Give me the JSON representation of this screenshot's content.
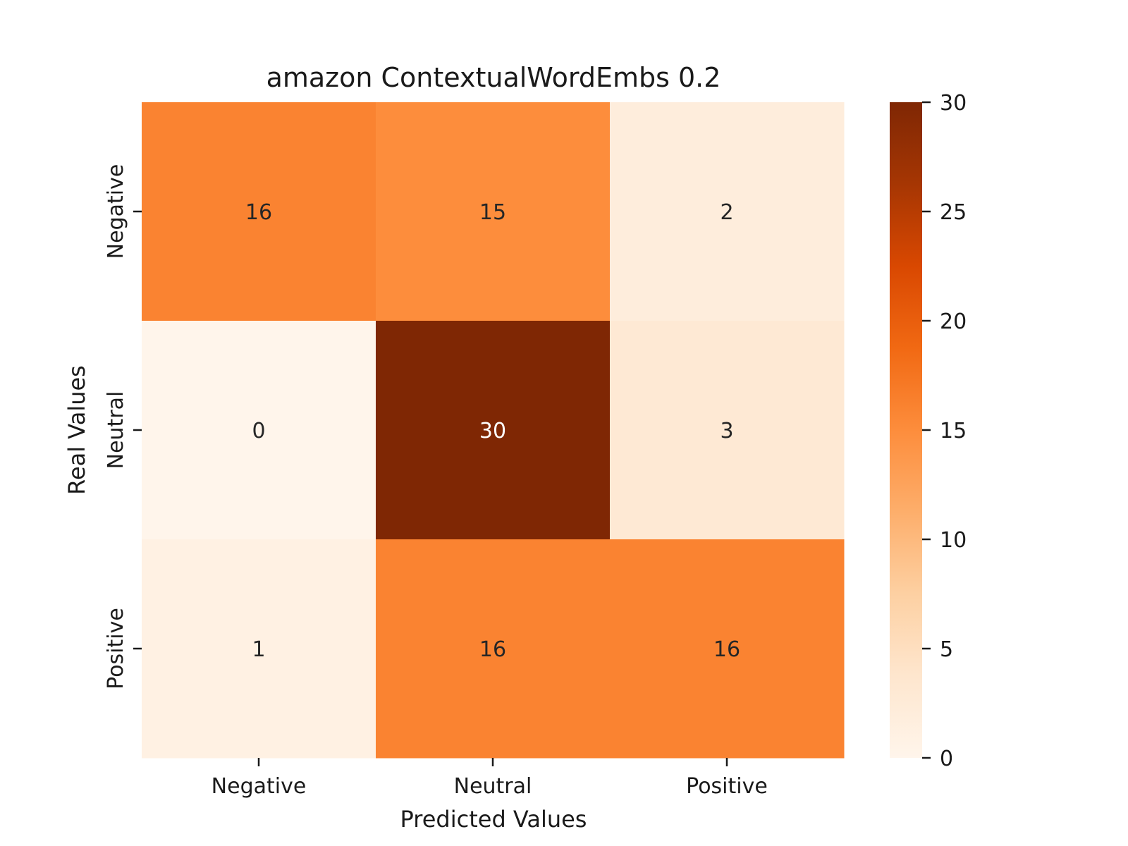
{
  "chart_data": {
    "type": "heatmap",
    "title": "amazon ContextualWordEmbs 0.2",
    "xlabel": "Predicted Values",
    "ylabel": "Real Values",
    "x_categories": [
      "Negative",
      "Neutral",
      "Positive"
    ],
    "y_categories": [
      "Negative",
      "Neutral",
      "Positive"
    ],
    "values": [
      [
        16,
        15,
        2
      ],
      [
        0,
        30,
        3
      ],
      [
        1,
        16,
        16
      ]
    ],
    "colorbar": {
      "range": [
        0,
        30
      ],
      "ticks": [
        0,
        5,
        10,
        15,
        20,
        25,
        30
      ]
    },
    "colormap": [
      "#fff5eb",
      "#fee6ce",
      "#fdd0a2",
      "#fdae6b",
      "#fd8d3c",
      "#f16913",
      "#d94801",
      "#a63603",
      "#7f2704"
    ],
    "grid": false
  }
}
